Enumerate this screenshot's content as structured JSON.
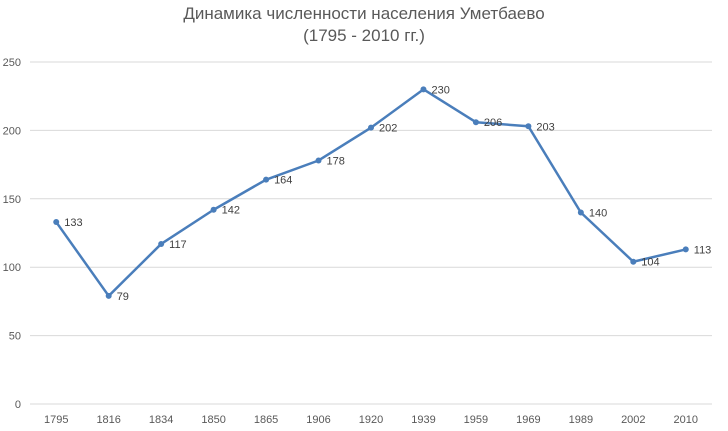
{
  "chart_data": {
    "type": "line",
    "title": "Динамика численности населения Уметбаево",
    "subtitle": "(1795 - 2010 гг.)",
    "categories": [
      "1795",
      "1816",
      "1834",
      "1850",
      "1865",
      "1906",
      "1920",
      "1939",
      "1959",
      "1969",
      "1989",
      "2002",
      "2010"
    ],
    "series": [
      {
        "values": [
          133,
          79,
          117,
          142,
          164,
          178,
          202,
          230,
          206,
          203,
          140,
          104,
          113
        ]
      }
    ],
    "ylim": [
      0,
      250
    ],
    "yticks": [
      0,
      50,
      100,
      150,
      200,
      250
    ],
    "grid": true,
    "data_labels": true,
    "colors": {
      "line": "#4a7ebb",
      "grid": "#d9d9d9"
    }
  }
}
